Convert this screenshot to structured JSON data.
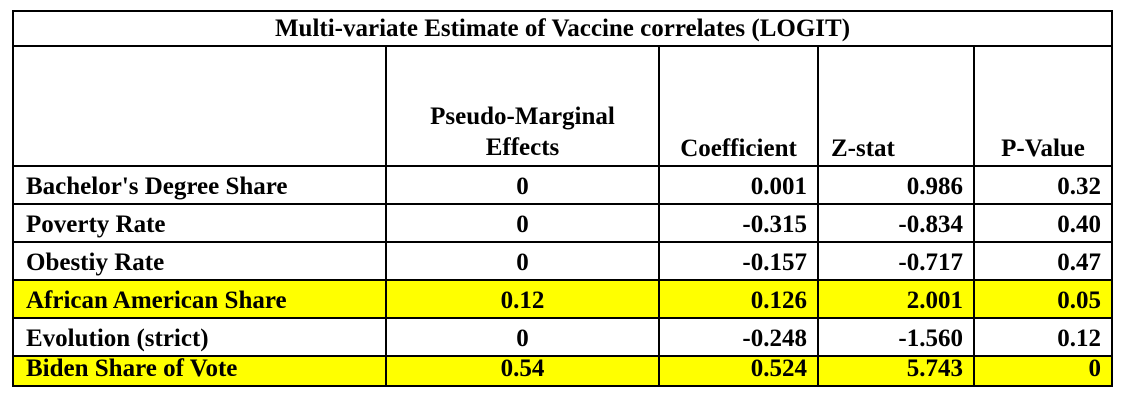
{
  "table": {
    "title": "Multi-variate Estimate of Vaccine correlates (LOGIT)",
    "headers": {
      "variable": "",
      "marginal_line1": "Pseudo-Marginal",
      "marginal_line2": "Effects",
      "coefficient": "Coefficient",
      "zstat": "Z-stat",
      "pvalue": "P-Value"
    },
    "rows": [
      {
        "variable": "Bachelor's Degree Share",
        "marginal": "0",
        "coefficient": "0.001",
        "zstat": "0.986",
        "pvalue": "0.32",
        "highlighted": false
      },
      {
        "variable": "Poverty Rate",
        "marginal": "0",
        "coefficient": "-0.315",
        "zstat": "-0.834",
        "pvalue": "0.40",
        "highlighted": false
      },
      {
        "variable": "Obestiy Rate",
        "marginal": "0",
        "coefficient": "-0.157",
        "zstat": "-0.717",
        "pvalue": "0.47",
        "highlighted": false
      },
      {
        "variable": "African American Share",
        "marginal": "0.12",
        "coefficient": "0.126",
        "zstat": "2.001",
        "pvalue": "0.05",
        "highlighted": true
      },
      {
        "variable": "Evolution (strict)",
        "marginal": "0",
        "coefficient": "-0.248",
        "zstat": "-1.560",
        "pvalue": "0.12",
        "highlighted": false
      },
      {
        "variable": "Biden Share of Vote",
        "marginal": "0.54",
        "coefficient": "0.524",
        "zstat": "5.743",
        "pvalue": "0",
        "highlighted": true
      }
    ],
    "highlight_color": "#ffff00"
  }
}
